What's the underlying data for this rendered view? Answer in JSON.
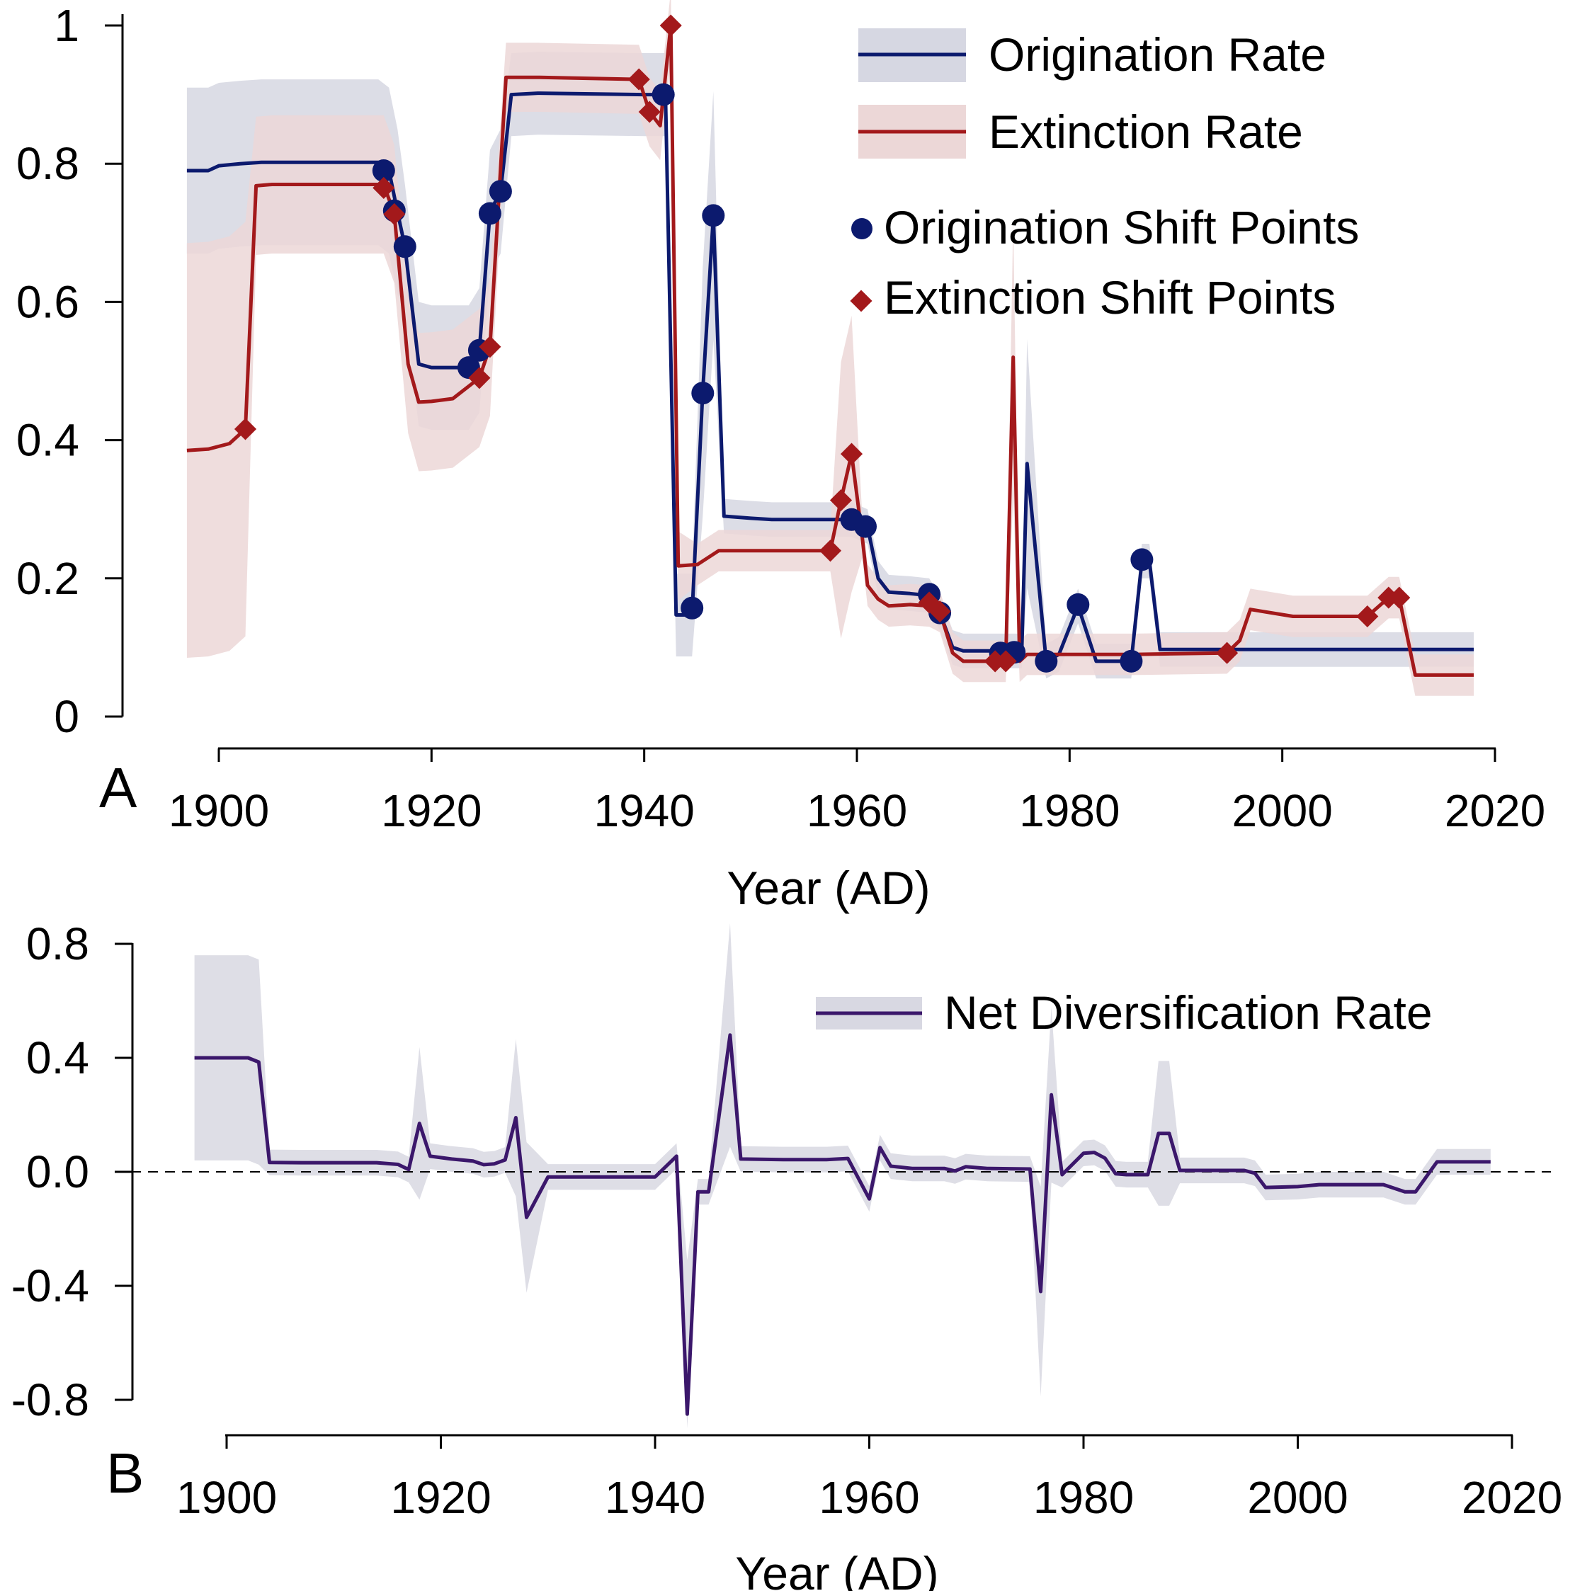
{
  "colors": {
    "origination": "#0c1a6e",
    "extinction": "#a3191b",
    "origination_band": "#d6d7e2",
    "extinction_band": "#ecd7d7",
    "net": "#3b176b",
    "net_band": "#d8d8e2"
  },
  "chart_data": [
    {
      "panel": "A",
      "type": "line",
      "xlabel": "Year (AD)",
      "ylabel": "",
      "xlim": [
        1890,
        2020
      ],
      "ylim": [
        0,
        1
      ],
      "xticks": [
        "1900",
        "1920",
        "1940",
        "1960",
        "1980",
        "2000",
        "2020"
      ],
      "yticks": [
        "0",
        "0.2",
        "0.4",
        "0.6",
        "0.8",
        "1"
      ],
      "legend_position": "top-right",
      "legend": [
        "Origination Rate",
        "Extinction Rate",
        "Origination Shift Points",
        "Extinction Shift Points"
      ],
      "series": [
        {
          "name": "Origination Rate",
          "x": [
            1897,
            1899,
            1900,
            1902,
            1904,
            1906,
            1915,
            1916,
            1916.8,
            1917.5,
            1918.8,
            1920,
            1923.5,
            1924.5,
            1925.5,
            1926.5,
            1927.5,
            1930,
            1940,
            1942,
            1943,
            1944.5,
            1945.5,
            1946.5,
            1947.5,
            1950,
            1952,
            1955,
            1958,
            1959.5,
            1961,
            1962,
            1963,
            1965,
            1966.8,
            1967.8,
            1969,
            1970,
            1973.5,
            1974.8,
            1975.5,
            1976,
            1977.8,
            1979,
            1980.8,
            1982.5,
            1985.8,
            1986.8,
            1987.5,
            1988.5,
            1995,
            2000,
            2018
          ],
          "y": [
            0.79,
            0.79,
            0.797,
            0.8,
            0.802,
            0.802,
            0.802,
            0.79,
            0.73,
            0.68,
            0.51,
            0.505,
            0.505,
            0.53,
            0.73,
            0.76,
            0.9,
            0.902,
            0.9,
            0.9,
            0.147,
            0.147,
            0.47,
            0.725,
            0.29,
            0.287,
            0.285,
            0.285,
            0.285,
            0.285,
            0.275,
            0.2,
            0.18,
            0.178,
            0.175,
            0.15,
            0.1,
            0.095,
            0.095,
            0.095,
            0.095,
            0.366,
            0.08,
            0.09,
            0.16,
            0.08,
            0.08,
            0.225,
            0.225,
            0.097,
            0.097,
            0.097,
            0.097
          ]
        },
        {
          "name": "Extinction Rate",
          "x": [
            1897,
            1899,
            1901,
            1902.5,
            1903.5,
            1905,
            1915.5,
            1916.5,
            1917.8,
            1918.8,
            1920,
            1922,
            1924.5,
            1925.5,
            1927,
            1930,
            1939.5,
            1940.5,
            1941.5,
            1942.5,
            1943.2,
            1945,
            1947,
            1950,
            1957.5,
            1958.5,
            1959.5,
            1960.5,
            1961,
            1962,
            1963,
            1965,
            1966.8,
            1967.8,
            1969,
            1970,
            1973,
            1974,
            1974.7,
            1975.3,
            1976,
            1977,
            1980,
            1986,
            1994.8,
            1996,
            1997,
            2001,
            2008,
            2010,
            2011,
            2012.5,
            2018
          ],
          "y": [
            0.385,
            0.387,
            0.395,
            0.416,
            0.768,
            0.77,
            0.77,
            0.727,
            0.51,
            0.455,
            0.456,
            0.46,
            0.49,
            0.535,
            0.925,
            0.925,
            0.922,
            0.875,
            0.855,
            1.0,
            0.218,
            0.22,
            0.24,
            0.24,
            0.24,
            0.313,
            0.38,
            0.26,
            0.19,
            0.17,
            0.16,
            0.162,
            0.16,
            0.152,
            0.092,
            0.08,
            0.08,
            0.08,
            0.52,
            0.08,
            0.09,
            0.09,
            0.09,
            0.09,
            0.092,
            0.11,
            0.155,
            0.145,
            0.145,
            0.172,
            0.172,
            0.06,
            0.06
          ]
        }
      ],
      "origination_shift_points": {
        "x": [
          1915.5,
          1916.5,
          1917.5,
          1923.5,
          1924.5,
          1925.5,
          1926.5,
          1941.8,
          1944.5,
          1945.5,
          1946.5,
          1959.5,
          1960.8,
          1966.8,
          1967.8,
          1973.5,
          1974.8,
          1977.8,
          1980.8,
          1985.8,
          1986.8
        ],
        "y": [
          0.79,
          0.732,
          0.68,
          0.505,
          0.53,
          0.728,
          0.76,
          0.9,
          0.157,
          0.468,
          0.725,
          0.285,
          0.275,
          0.177,
          0.15,
          0.092,
          0.093,
          0.08,
          0.162,
          0.08,
          0.227
        ]
      },
      "extinction_shift_points": {
        "x": [
          1902.5,
          1915.5,
          1916.5,
          1924.5,
          1925.5,
          1939.5,
          1940.5,
          1942.5,
          1957.5,
          1958.5,
          1959.5,
          1966.8,
          1967.8,
          1973,
          1974,
          1994.8,
          2008,
          2010,
          2011
        ],
        "y": [
          0.416,
          0.765,
          0.727,
          0.49,
          0.535,
          0.922,
          0.875,
          1.0,
          0.24,
          0.313,
          0.38,
          0.165,
          0.152,
          0.08,
          0.08,
          0.092,
          0.145,
          0.172,
          0.172
        ]
      }
    },
    {
      "panel": "B",
      "type": "line",
      "xlabel": "Year (AD)",
      "ylabel": "",
      "xlim": [
        1890,
        2020
      ],
      "ylim": [
        -0.8,
        0.8
      ],
      "xticks": [
        "1900",
        "1920",
        "1940",
        "1960",
        "1980",
        "2000",
        "2020"
      ],
      "yticks": [
        "-0.8",
        "-0.4",
        "0.0",
        "0.4",
        "0.8"
      ],
      "reference_line": 0,
      "legend_position": "top-right",
      "legend": [
        "Net Diversification Rate"
      ],
      "series": [
        {
          "name": "Net Diversification Rate",
          "x": [
            1897,
            1900,
            1902,
            1903,
            1904,
            1907,
            1910,
            1914,
            1916,
            1917,
            1918,
            1919,
            1921,
            1923,
            1924,
            1925,
            1926,
            1927,
            1928,
            1930,
            1934,
            1938,
            1940,
            1942,
            1943,
            1944,
            1945,
            1947,
            1948,
            1952,
            1956,
            1958,
            1960,
            1961,
            1962,
            1964,
            1967,
            1968,
            1969,
            1971,
            1975,
            1976,
            1977,
            1978,
            1980,
            1981,
            1982,
            1983,
            1984,
            1986,
            1987,
            1988,
            1989,
            1990,
            1995,
            1996,
            1997,
            2000,
            2002,
            2008,
            2010,
            2011,
            2013,
            2018
          ],
          "y": [
            0.4,
            0.4,
            0.4,
            0.385,
            0.033,
            0.032,
            0.032,
            0.032,
            0.026,
            0.008,
            0.17,
            0.055,
            0.045,
            0.038,
            0.025,
            0.028,
            0.042,
            0.19,
            -0.16,
            -0.018,
            -0.018,
            -0.018,
            -0.018,
            0.055,
            -0.85,
            -0.07,
            -0.07,
            0.48,
            0.045,
            0.043,
            0.043,
            0.047,
            -0.095,
            0.085,
            0.02,
            0.012,
            0.012,
            0.003,
            0.018,
            0.012,
            0.01,
            -0.42,
            0.27,
            -0.01,
            0.065,
            0.068,
            0.048,
            -0.007,
            -0.01,
            -0.01,
            0.135,
            0.135,
            0.005,
            0.005,
            0.005,
            -0.005,
            -0.055,
            -0.052,
            -0.045,
            -0.045,
            -0.07,
            -0.07,
            0.035,
            0.035
          ]
        }
      ]
    }
  ]
}
